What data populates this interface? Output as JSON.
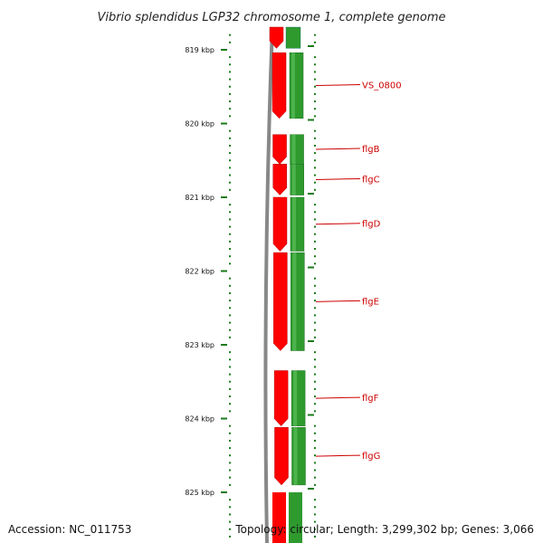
{
  "title": "Vibrio splendidus LGP32 chromosome 1, complete genome",
  "footer": {
    "accession": "Accession: NC_011753",
    "topology": "Topology: circular; Length: 3,299,302 bp; Genes: 3,066"
  },
  "colors": {
    "forward": "#ff0000",
    "reverse": "#2e9a2e",
    "label": "#cc0000",
    "tick": "#1a7a1a",
    "backbone": "#888888"
  },
  "ruler": [
    {
      "label": "819 kbp",
      "kbp": 819
    },
    {
      "label": "820 kbp",
      "kbp": 820
    },
    {
      "label": "821 kbp",
      "kbp": 821
    },
    {
      "label": "822 kbp",
      "kbp": 822
    },
    {
      "label": "823 kbp",
      "kbp": 823
    },
    {
      "label": "824 kbp",
      "kbp": 824
    },
    {
      "label": "825 kbp",
      "kbp": 825
    }
  ],
  "genes": [
    {
      "name": "VS_0800",
      "start_kbp": 819.04,
      "end_kbp": 819.93
    },
    {
      "name": "flgB",
      "start_kbp": 820.15,
      "end_kbp": 820.55
    },
    {
      "name": "flgC",
      "start_kbp": 820.55,
      "end_kbp": 820.97
    },
    {
      "name": "flgD",
      "start_kbp": 821.0,
      "end_kbp": 821.73
    },
    {
      "name": "flgE",
      "start_kbp": 821.75,
      "end_kbp": 823.08
    },
    {
      "name": "flgF",
      "start_kbp": 823.35,
      "end_kbp": 824.1
    },
    {
      "name": "flgG",
      "start_kbp": 824.12,
      "end_kbp": 824.9
    }
  ]
}
